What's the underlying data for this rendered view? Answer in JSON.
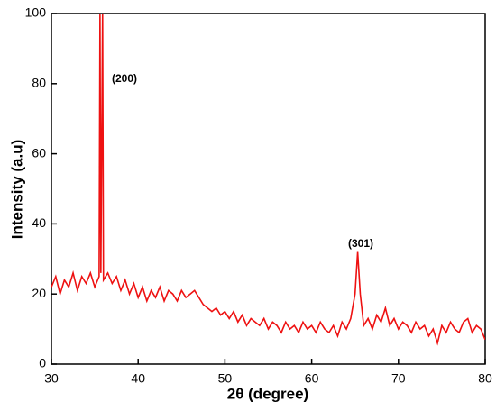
{
  "chart_data": {
    "type": "line",
    "xlabel": "2θ (degree)",
    "ylabel": "Intensity (a.u)",
    "annotations": [
      "(200)",
      "(301)"
    ],
    "x": [
      30,
      30.5,
      31,
      31.5,
      32,
      32.5,
      33,
      33.5,
      34,
      34.5,
      35,
      35.5,
      35.6,
      35.7,
      35.9,
      36,
      36.5,
      37,
      37.5,
      38,
      38.5,
      39,
      39.5,
      40,
      40.5,
      41,
      41.5,
      42,
      42.5,
      43,
      43.5,
      44,
      44.5,
      45,
      45.5,
      46,
      46.5,
      47,
      47.5,
      48,
      48.5,
      49,
      49.5,
      50,
      50.5,
      51,
      51.5,
      52,
      52.5,
      53,
      53.5,
      54,
      54.5,
      55,
      55.5,
      56,
      56.5,
      57,
      57.5,
      58,
      58.5,
      59,
      59.5,
      60,
      60.5,
      61,
      61.5,
      62,
      62.5,
      63,
      63.5,
      64,
      64.5,
      65,
      65.3,
      65.6,
      66,
      66.5,
      67,
      67.5,
      68,
      68.5,
      69,
      69.5,
      70,
      70.5,
      71,
      71.5,
      72,
      72.5,
      73,
      73.5,
      74,
      74.5,
      75,
      75.5,
      76,
      76.5,
      77,
      77.5,
      78,
      78.5,
      79,
      79.5,
      80
    ],
    "series": [
      {
        "color": "#ee1111",
        "values": [
          22,
          25,
          20,
          24,
          22,
          26,
          21,
          25,
          23,
          26,
          22,
          25,
          100,
          26,
          100,
          24,
          26,
          23,
          25,
          21,
          24,
          20,
          23,
          19,
          22,
          18,
          21,
          19,
          22,
          18,
          21,
          20,
          18,
          21,
          19,
          20,
          21,
          19,
          17,
          16,
          15,
          16,
          14,
          15,
          13,
          15,
          12,
          14,
          11,
          13,
          12,
          11,
          13,
          10,
          12,
          11,
          9,
          12,
          10,
          11,
          9,
          12,
          10,
          11,
          9,
          12,
          10,
          9,
          11,
          8,
          12,
          10,
          13,
          20,
          32,
          20,
          11,
          13,
          10,
          14,
          12,
          16,
          11,
          13,
          10,
          12,
          11,
          9,
          12,
          10,
          11,
          8,
          10,
          6,
          11,
          9,
          12,
          10,
          9,
          12,
          13,
          9,
          11,
          10,
          7
        ]
      }
    ],
    "xlim": [
      30,
      80
    ],
    "xticks": [
      30,
      40,
      50,
      60,
      70,
      80
    ],
    "ylim": [
      0,
      100
    ],
    "yticks": [
      0,
      20,
      40,
      60,
      80,
      100
    ]
  }
}
